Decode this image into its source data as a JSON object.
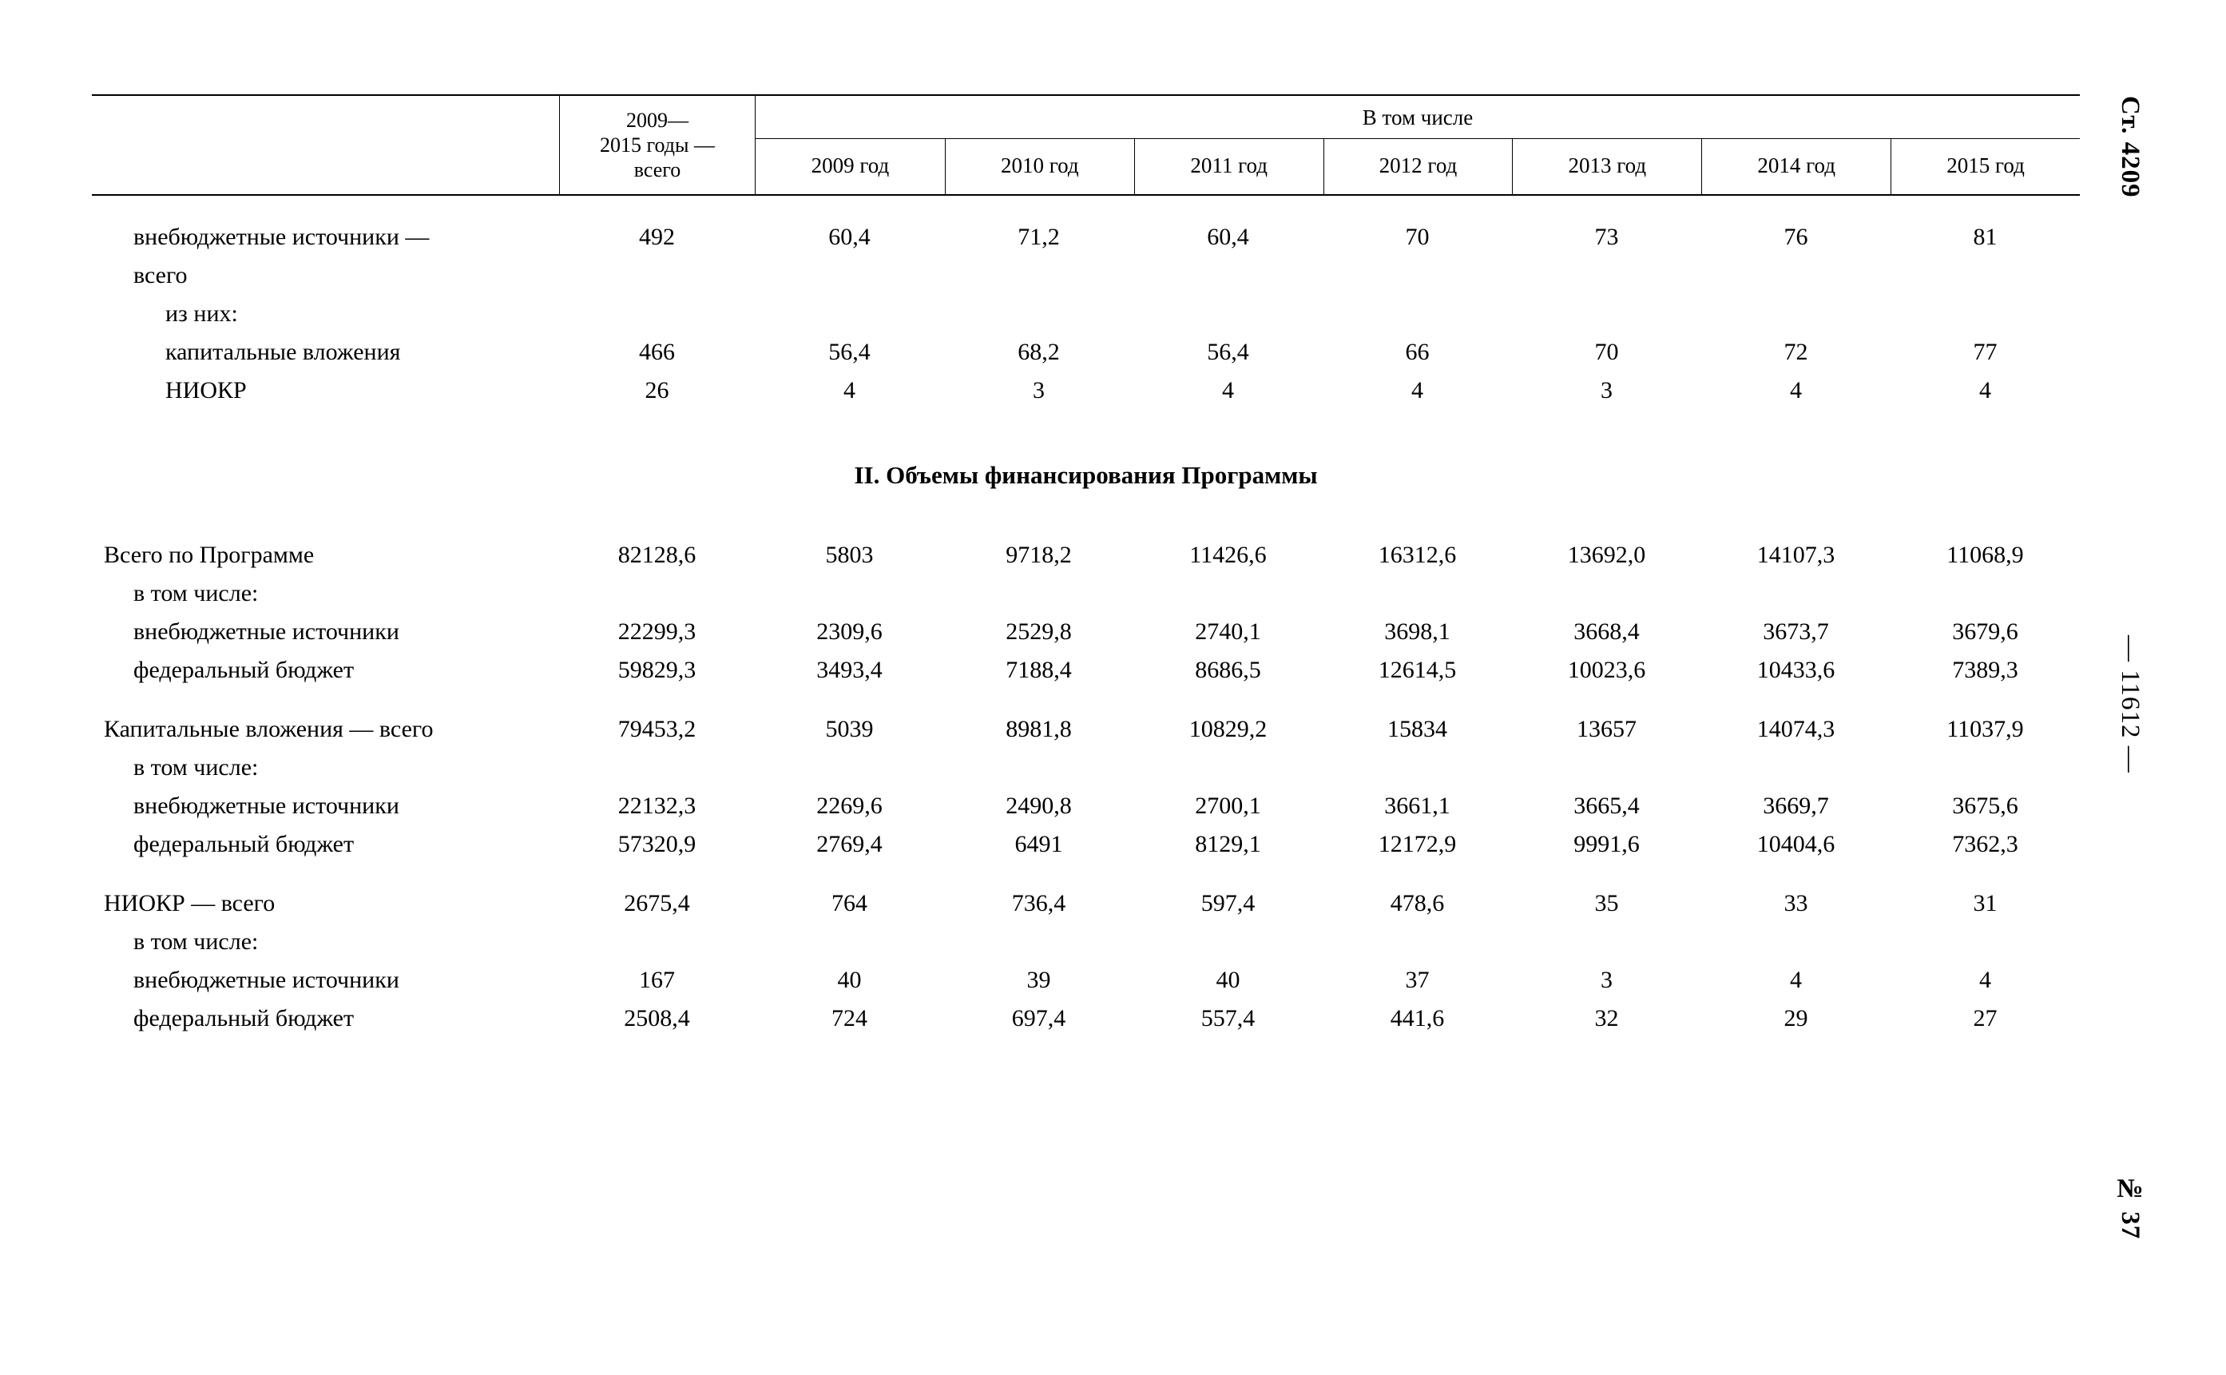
{
  "margin": {
    "top": "Ст. 4209",
    "middle": "— 11612 —",
    "bottom": "№ 37"
  },
  "table": {
    "header": {
      "total": "2009—\n2015 годы —\nвсего",
      "group": "В том числе",
      "years": [
        "2009 год",
        "2010 год",
        "2011 год",
        "2012 год",
        "2013 год",
        "2014 год",
        "2015 год"
      ]
    },
    "sections": [
      {
        "title": null,
        "rows": [
          {
            "label": "внебюджетные источники —\nвсего",
            "indent": 1,
            "values": [
              "492",
              "60,4",
              "71,2",
              "60,4",
              "70",
              "73",
              "76",
              "81"
            ]
          },
          {
            "label": "из них:",
            "indent": 2,
            "values": null
          },
          {
            "label": "капитальные вложения",
            "indent": 2,
            "values": [
              "466",
              "56,4",
              "68,2",
              "56,4",
              "66",
              "70",
              "72",
              "77"
            ]
          },
          {
            "label": "НИОКР",
            "indent": 2,
            "values": [
              "26",
              "4",
              "3",
              "4",
              "4",
              "3",
              "4",
              "4"
            ]
          }
        ]
      },
      {
        "title": "II. Объемы финансирования Программы",
        "rows": [
          {
            "label": "Всего по Программе",
            "indent": 0,
            "values": [
              "82128,6",
              "5803",
              "9718,2",
              "11426,6",
              "16312,6",
              "13692,0",
              "14107,3",
              "11068,9"
            ]
          },
          {
            "label": "в том числе:",
            "indent": 1,
            "values": null
          },
          {
            "label": "внебюджетные источники",
            "indent": 1,
            "values": [
              "22299,3",
              "2309,6",
              "2529,8",
              "2740,1",
              "3698,1",
              "3668,4",
              "3673,7",
              "3679,6"
            ]
          },
          {
            "label": "федеральный бюджет",
            "indent": 1,
            "values": [
              "59829,3",
              "3493,4",
              "7188,4",
              "8686,5",
              "12614,5",
              "10023,6",
              "10433,6",
              "7389,3"
            ]
          },
          {
            "label": "Капитальные вложения — всего",
            "indent": 0,
            "gap": true,
            "values": [
              "79453,2",
              "5039",
              "8981,8",
              "10829,2",
              "15834",
              "13657",
              "14074,3",
              "11037,9"
            ]
          },
          {
            "label": "в том числе:",
            "indent": 1,
            "values": null
          },
          {
            "label": "внебюджетные источники",
            "indent": 1,
            "values": [
              "22132,3",
              "2269,6",
              "2490,8",
              "2700,1",
              "3661,1",
              "3665,4",
              "3669,7",
              "3675,6"
            ]
          },
          {
            "label": "федеральный бюджет",
            "indent": 1,
            "values": [
              "57320,9",
              "2769,4",
              "6491",
              "8129,1",
              "12172,9",
              "9991,6",
              "10404,6",
              "7362,3"
            ]
          },
          {
            "label": "НИОКР — всего",
            "indent": 0,
            "gap": true,
            "values": [
              "2675,4",
              "764",
              "736,4",
              "597,4",
              "478,6",
              "35",
              "33",
              "31"
            ]
          },
          {
            "label": "в том числе:",
            "indent": 1,
            "values": null
          },
          {
            "label": "внебюджетные источники",
            "indent": 1,
            "values": [
              "167",
              "40",
              "39",
              "40",
              "37",
              "3",
              "4",
              "4"
            ]
          },
          {
            "label": "федеральный бюджет",
            "indent": 1,
            "values": [
              "2508,4",
              "724",
              "697,4",
              "557,4",
              "441,6",
              "32",
              "29",
              "27"
            ]
          }
        ]
      }
    ]
  }
}
